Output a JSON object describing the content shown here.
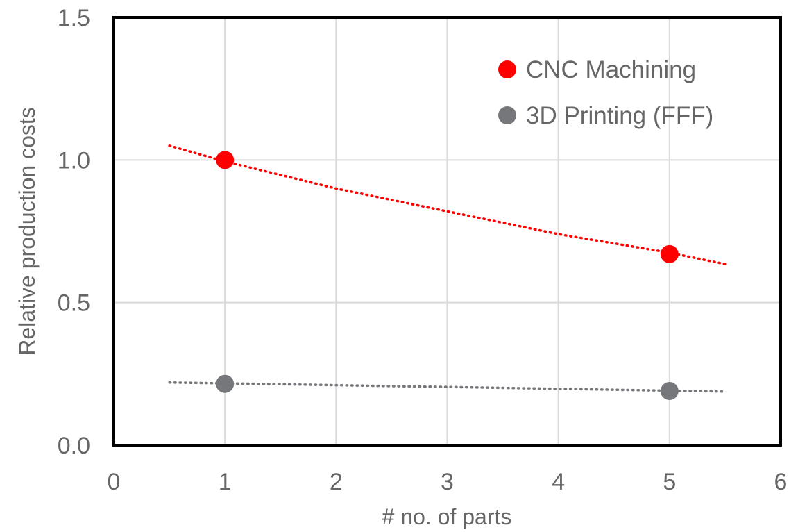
{
  "chart_data": {
    "type": "scatter",
    "title": "",
    "xlabel": "# no. of parts",
    "ylabel": "Relative production costs",
    "xlim": [
      0,
      6
    ],
    "ylim": [
      0,
      1.5
    ],
    "x_ticks": [
      "0",
      "1",
      "2",
      "3",
      "4",
      "5",
      "6"
    ],
    "y_ticks": [
      "0.0",
      "0.5",
      "1.0",
      "1.5"
    ],
    "grid": true,
    "legend_position": "top-right",
    "series": [
      {
        "name": "CNC Machining",
        "color": "#ff0000",
        "points": [
          {
            "x": 1,
            "y": 1.0
          },
          {
            "x": 5,
            "y": 0.67
          }
        ],
        "trendline": {
          "style": "dotted",
          "points": [
            {
              "x": 0.5,
              "y": 1.05
            },
            {
              "x": 1,
              "y": 0.995
            },
            {
              "x": 2,
              "y": 0.9
            },
            {
              "x": 3,
              "y": 0.82
            },
            {
              "x": 4,
              "y": 0.74
            },
            {
              "x": 5,
              "y": 0.675
            },
            {
              "x": 5.5,
              "y": 0.635
            }
          ]
        }
      },
      {
        "name": "3D Printing (FFF)",
        "color": "#76777b",
        "points": [
          {
            "x": 1,
            "y": 0.215
          },
          {
            "x": 5,
            "y": 0.19
          }
        ],
        "trendline": {
          "style": "dotted",
          "points": [
            {
              "x": 0.5,
              "y": 0.22
            },
            {
              "x": 3,
              "y": 0.204
            },
            {
              "x": 5.5,
              "y": 0.188
            }
          ]
        }
      }
    ]
  }
}
